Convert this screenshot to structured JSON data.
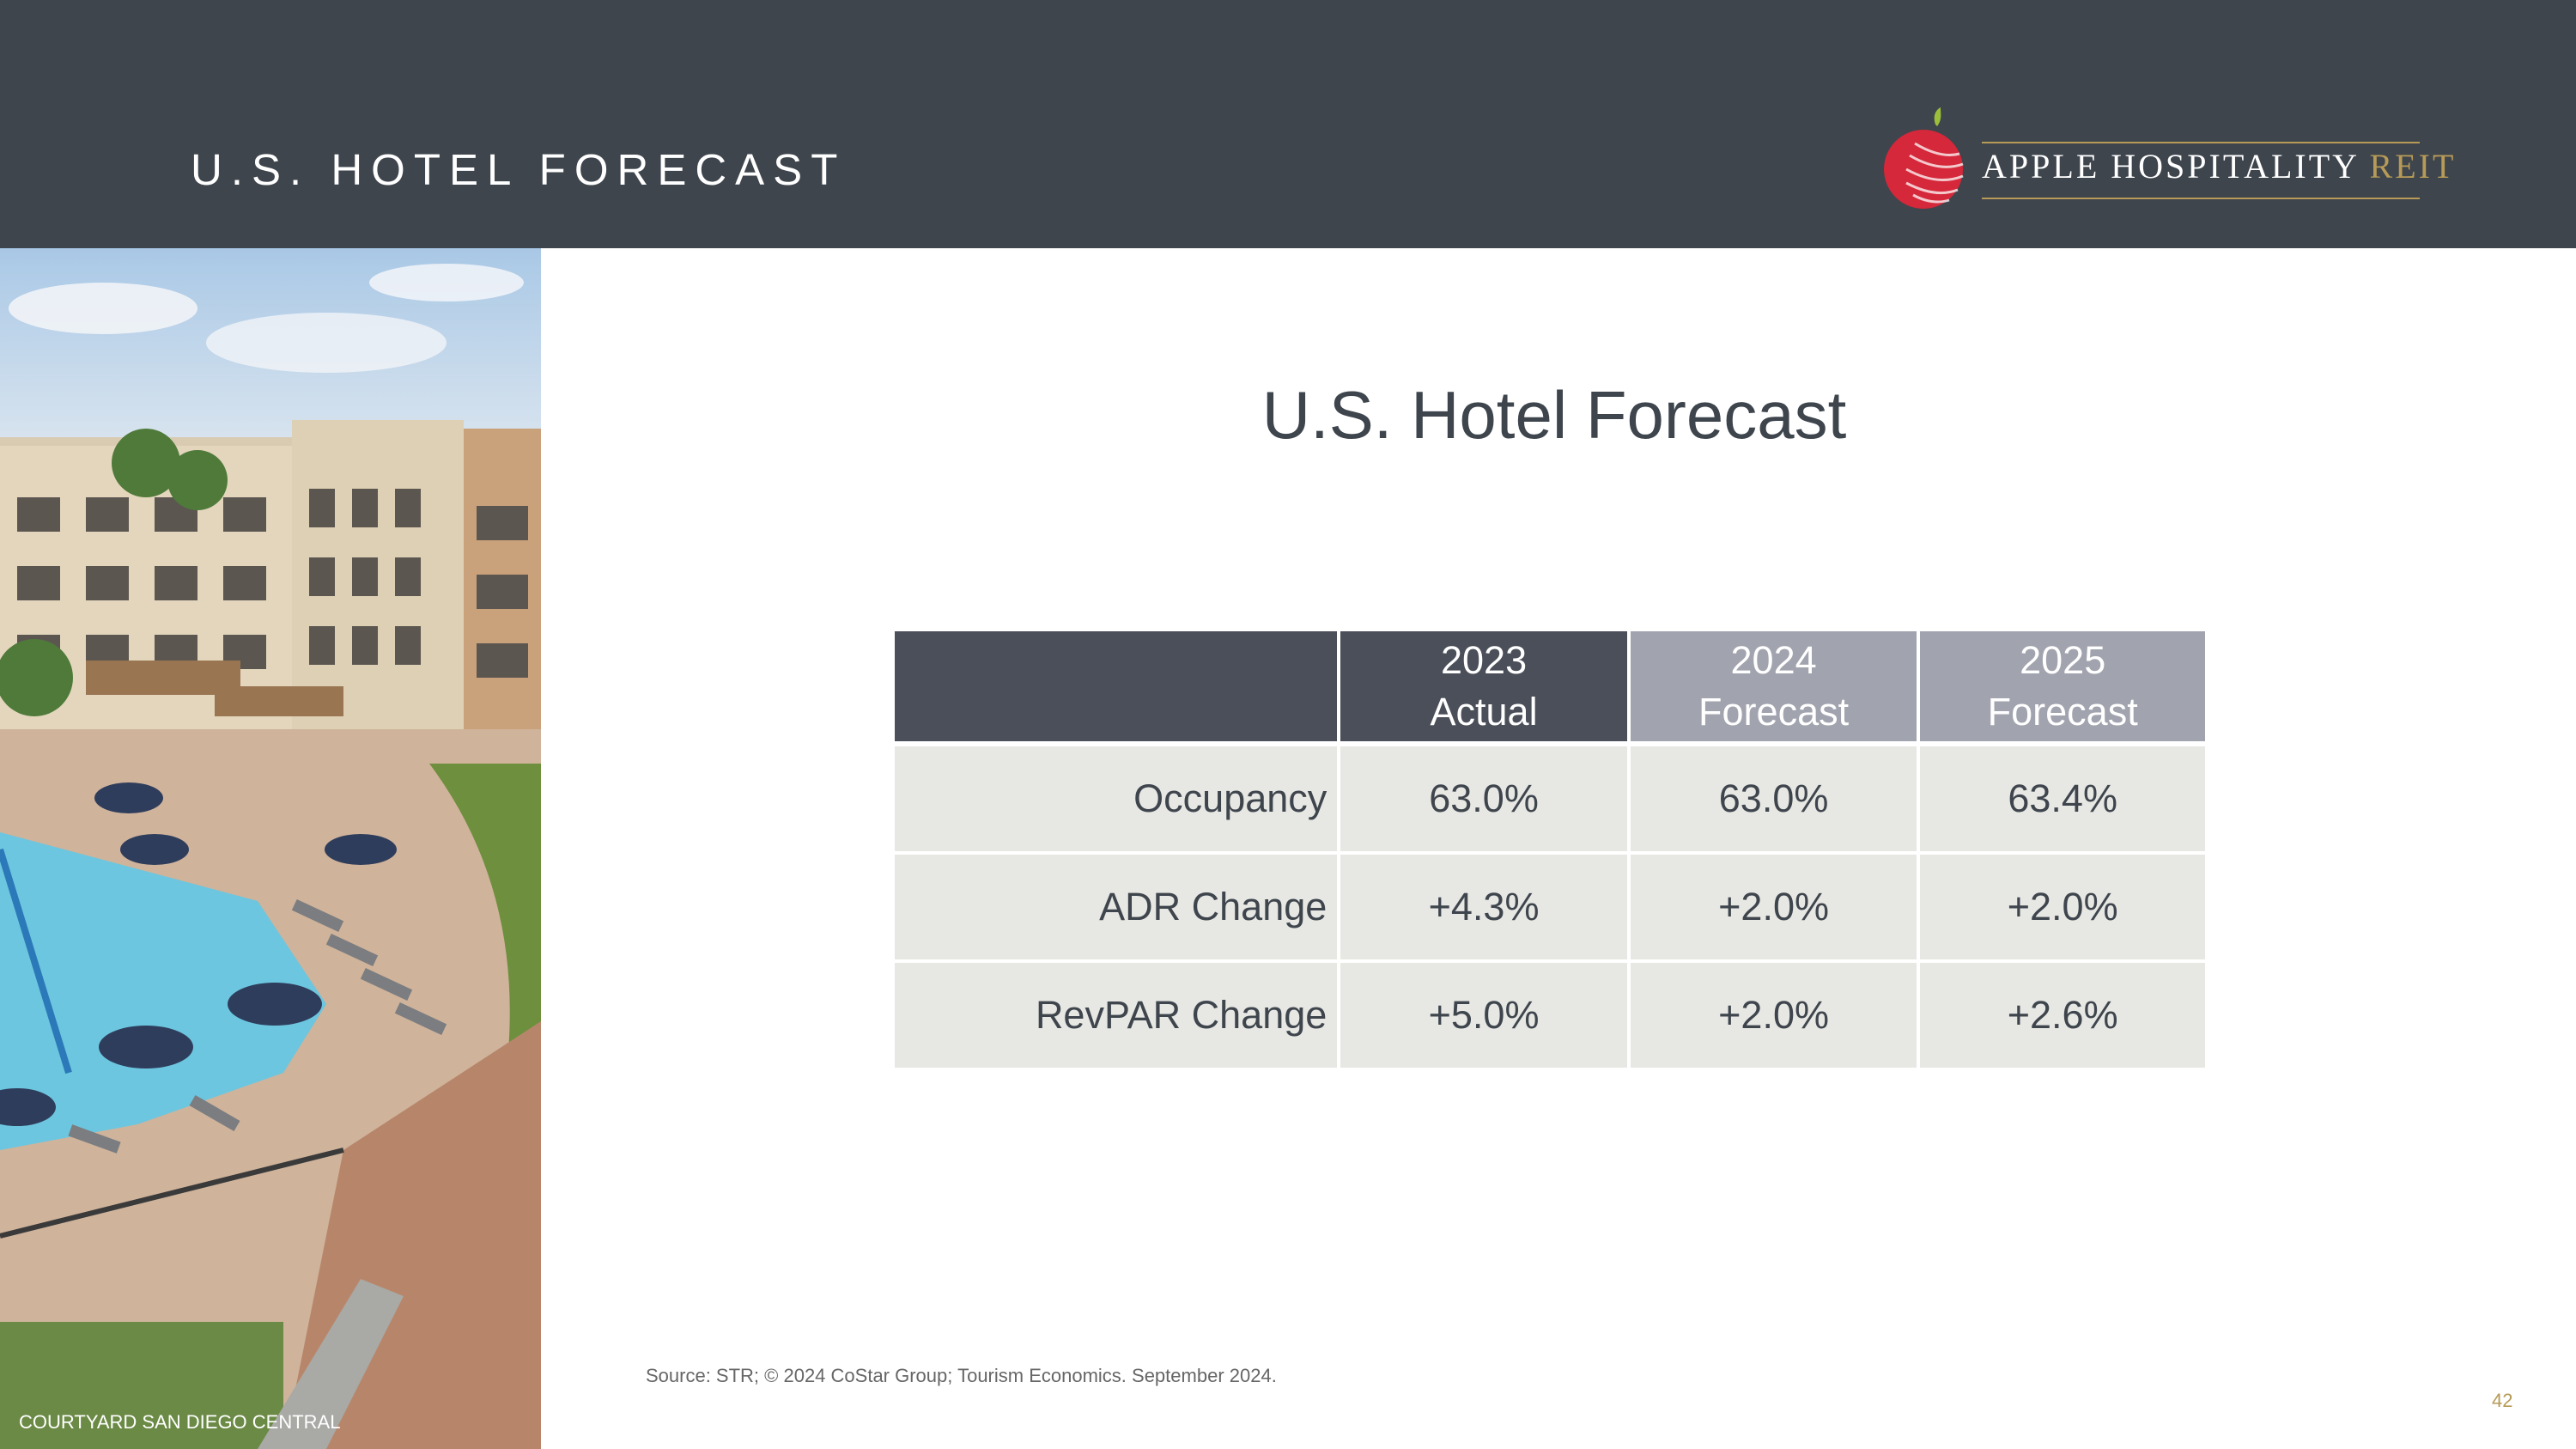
{
  "header": {
    "title": "U.S. HOTEL FORECAST",
    "logo_text": "APPLE HOSPITALITY",
    "logo_text_accent": "REIT"
  },
  "photo": {
    "caption": "COURTYARD SAN DIEGO CENTRAL"
  },
  "slide": {
    "title": "U.S. Hotel Forecast"
  },
  "table": {
    "columns": [
      {
        "year": "2023",
        "type": "Actual"
      },
      {
        "year": "2024",
        "type": "Forecast"
      },
      {
        "year": "2025",
        "type": "Forecast"
      }
    ],
    "rows": [
      {
        "label": "Occupancy",
        "values": [
          "63.0%",
          "63.0%",
          "63.4%"
        ]
      },
      {
        "label": "ADR Change",
        "values": [
          "+4.3%",
          "+2.0%",
          "+2.0%"
        ]
      },
      {
        "label": "RevPAR Change",
        "values": [
          "+5.0%",
          "+2.0%",
          "+2.6%"
        ]
      }
    ]
  },
  "footer": {
    "source": "Source: STR; © 2024 CoStar Group; Tourism Economics. September 2024.",
    "page_number": "42"
  },
  "colors": {
    "header_bg": "#3e454d",
    "table_header_dark": "#4a4f59",
    "table_header_light": "#a1a4ae",
    "table_cell_bg": "#e7e7e3",
    "accent_gold": "#b79a57",
    "logo_red": "#d5283a"
  }
}
